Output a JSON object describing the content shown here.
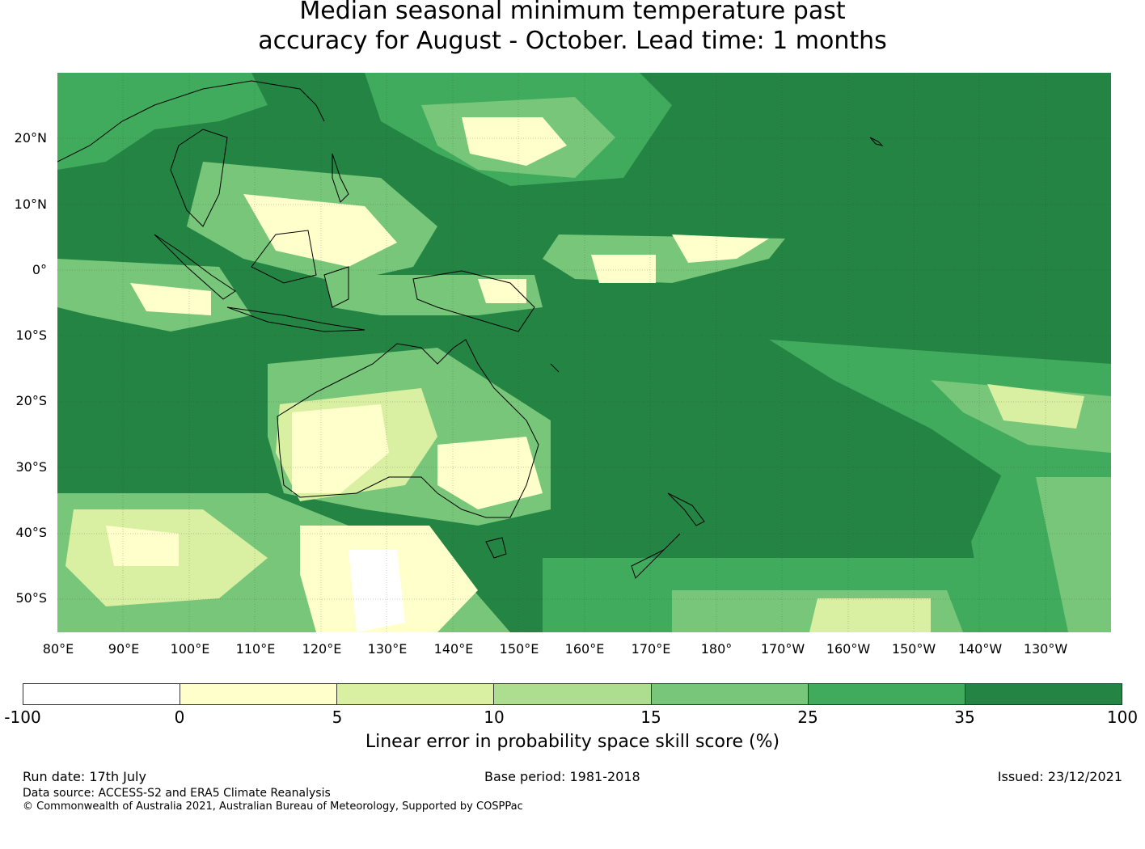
{
  "title_line1": "Median seasonal minimum temperature past",
  "title_line2": "accuracy for August - October. Lead time: 1 months",
  "lat_labels": [
    "20°N",
    "10°N",
    "0°",
    "10°S",
    "20°S",
    "30°S",
    "40°S",
    "50°S"
  ],
  "lon_labels": [
    "80°E",
    "90°E",
    "100°E",
    "110°E",
    "120°E",
    "130°E",
    "140°E",
    "150°E",
    "160°E",
    "170°E",
    "180°",
    "170°W",
    "160°W",
    "150°W",
    "140°W",
    "130°W"
  ],
  "colorbar": {
    "colors": [
      "#ffffff",
      "#ffffcc",
      "#d9f0a3",
      "#addd8e",
      "#78c679",
      "#41ab5d",
      "#238443"
    ],
    "ticks": [
      "-100",
      "0",
      "5",
      "10",
      "15",
      "25",
      "35",
      "100"
    ],
    "label": "Linear error in probability space skill score (%)"
  },
  "footer": {
    "run_date": "Run date: 17th July",
    "base_period": "Base period: 1981-2018",
    "issued": "Issued: 23/12/2021",
    "data_source": "Data source: ACCESS-S2 and ERA5 Climate Reanalysis",
    "copyright": "© Commonwealth of Australia 2021, Australian Bureau of Meteorology, Supported by COSPPac"
  },
  "map": {
    "extent": {
      "lon_min": 80,
      "lon_max": 240,
      "lat_min": -55,
      "lat_max": 30
    }
  }
}
